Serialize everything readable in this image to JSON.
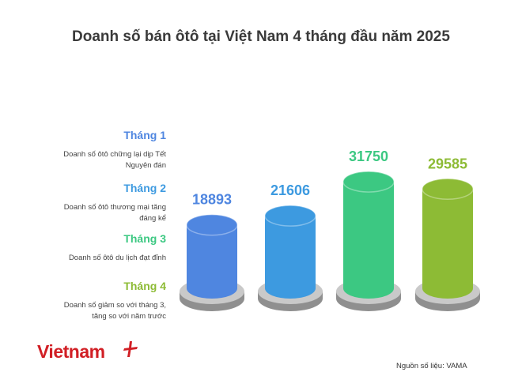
{
  "chart_data": {
    "type": "bar",
    "title": "Doanh số bán ôtô tại Việt Nam 4 tháng đầu năm 2025",
    "categories": [
      "Tháng 1",
      "Tháng 2",
      "Tháng 3",
      "Tháng 4"
    ],
    "values": [
      18893,
      21606,
      31750,
      29585
    ],
    "descriptions": [
      "Doanh số ôtô chững lại dịp Tết Nguyên đán",
      "Doanh số ôtô thương mại tăng đáng kể",
      "Doanh số ôtô du lịch đạt đỉnh",
      "Doanh số giảm so với tháng 3, tăng so với năm trước"
    ],
    "colors": [
      "#4f86e0",
      "#3d9ae0",
      "#3cc882",
      "#8dbb35"
    ],
    "legend_placement": "left",
    "grid": false
  },
  "legend": [
    {
      "month": "Tháng 1",
      "desc": "Doanh số ôtô chững lại dịp Tết Nguyên đán",
      "color": "#4f86e0"
    },
    {
      "month": "Tháng 2",
      "desc": "Doanh số ôtô thương mại tăng đáng kể",
      "color": "#3d9ae0"
    },
    {
      "month": "Tháng 3",
      "desc": "Doanh số ôtô du lịch đạt đỉnh",
      "color": "#3cc882"
    },
    {
      "month": "Tháng 4",
      "desc": "Doanh số giảm so với tháng 3, tăng so với năm trước",
      "color": "#8dbb35"
    }
  ],
  "brand": {
    "name": "Vietnam",
    "color": "#d11f25"
  },
  "source": "Nguồn số liệu: VAMA"
}
